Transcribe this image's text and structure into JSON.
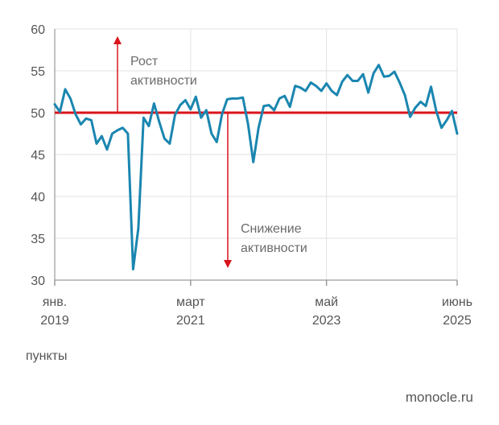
{
  "chart_data": {
    "type": "line",
    "title": "",
    "xlabel": "",
    "ylabel": "",
    "unit_label": "пункты",
    "source": "monocle.ru",
    "ylim": [
      30,
      60
    ],
    "yticks": [
      30,
      35,
      40,
      45,
      50,
      55,
      60
    ],
    "xlim": [
      "2019-01",
      "2025-06"
    ],
    "xticks": [
      {
        "date": "2019-01",
        "line1": "янв.",
        "line2": "2019"
      },
      {
        "date": "2021-03",
        "line1": "март",
        "line2": "2021"
      },
      {
        "date": "2023-05",
        "line1": "май",
        "line2": "2023"
      },
      {
        "date": "2025-06",
        "line1": "июнь",
        "line2": "2025"
      }
    ],
    "grid": true,
    "reference_line": {
      "y": 50,
      "color": "#d9141c"
    },
    "annotations": [
      {
        "lines": [
          "Рост",
          "активности"
        ],
        "direction": "up"
      },
      {
        "lines": [
          "Снижение",
          "активности"
        ],
        "direction": "down"
      }
    ],
    "series": [
      {
        "color": "#1a86b0",
        "points": [
          [
            "2019-01",
            51.0
          ],
          [
            "2019-02",
            50.1
          ],
          [
            "2019-03",
            52.8
          ],
          [
            "2019-04",
            51.7
          ],
          [
            "2019-05",
            49.8
          ],
          [
            "2019-06",
            48.6
          ],
          [
            "2019-07",
            49.3
          ],
          [
            "2019-08",
            49.1
          ],
          [
            "2019-09",
            46.3
          ],
          [
            "2019-10",
            47.2
          ],
          [
            "2019-11",
            45.6
          ],
          [
            "2019-12",
            47.5
          ],
          [
            "2020-01",
            47.9
          ],
          [
            "2020-02",
            48.2
          ],
          [
            "2020-03",
            47.5
          ],
          [
            "2020-04",
            31.3
          ],
          [
            "2020-05",
            36.2
          ],
          [
            "2020-06",
            49.4
          ],
          [
            "2020-07",
            48.4
          ],
          [
            "2020-08",
            51.1
          ],
          [
            "2020-09",
            48.9
          ],
          [
            "2020-10",
            46.9
          ],
          [
            "2020-11",
            46.3
          ],
          [
            "2020-12",
            49.7
          ],
          [
            "2021-01",
            50.9
          ],
          [
            "2021-02",
            51.5
          ],
          [
            "2021-03",
            50.4
          ],
          [
            "2021-04",
            51.9
          ],
          [
            "2021-05",
            49.4
          ],
          [
            "2021-06",
            50.3
          ],
          [
            "2021-07",
            47.5
          ],
          [
            "2021-08",
            46.5
          ],
          [
            "2021-09",
            49.8
          ],
          [
            "2021-10",
            51.6
          ],
          [
            "2021-11",
            51.7
          ],
          [
            "2021-12",
            51.7
          ],
          [
            "2022-01",
            51.8
          ],
          [
            "2022-02",
            48.6
          ],
          [
            "2022-03",
            44.1
          ],
          [
            "2022-04",
            48.2
          ],
          [
            "2022-05",
            50.8
          ],
          [
            "2022-06",
            50.9
          ],
          [
            "2022-07",
            50.3
          ],
          [
            "2022-08",
            51.7
          ],
          [
            "2022-09",
            52.0
          ],
          [
            "2022-10",
            50.7
          ],
          [
            "2022-11",
            53.2
          ],
          [
            "2022-12",
            53.0
          ],
          [
            "2023-01",
            52.6
          ],
          [
            "2023-02",
            53.6
          ],
          [
            "2023-03",
            53.2
          ],
          [
            "2023-04",
            52.6
          ],
          [
            "2023-05",
            53.5
          ],
          [
            "2023-06",
            52.6
          ],
          [
            "2023-07",
            52.1
          ],
          [
            "2023-08",
            53.7
          ],
          [
            "2023-09",
            54.5
          ],
          [
            "2023-10",
            53.8
          ],
          [
            "2023-11",
            53.8
          ],
          [
            "2023-12",
            54.6
          ],
          [
            "2024-01",
            52.4
          ],
          [
            "2024-02",
            54.7
          ],
          [
            "2024-03",
            55.7
          ],
          [
            "2024-04",
            54.3
          ],
          [
            "2024-05",
            54.4
          ],
          [
            "2024-06",
            54.9
          ],
          [
            "2024-07",
            53.6
          ],
          [
            "2024-08",
            52.1
          ],
          [
            "2024-09",
            49.5
          ],
          [
            "2024-10",
            50.6
          ],
          [
            "2024-11",
            51.3
          ],
          [
            "2024-12",
            50.8
          ],
          [
            "2025-01",
            53.1
          ],
          [
            "2025-02",
            50.2
          ],
          [
            "2025-03",
            48.2
          ],
          [
            "2025-04",
            49.1
          ],
          [
            "2025-05",
            50.2
          ],
          [
            "2025-06",
            47.5
          ]
        ]
      }
    ]
  }
}
